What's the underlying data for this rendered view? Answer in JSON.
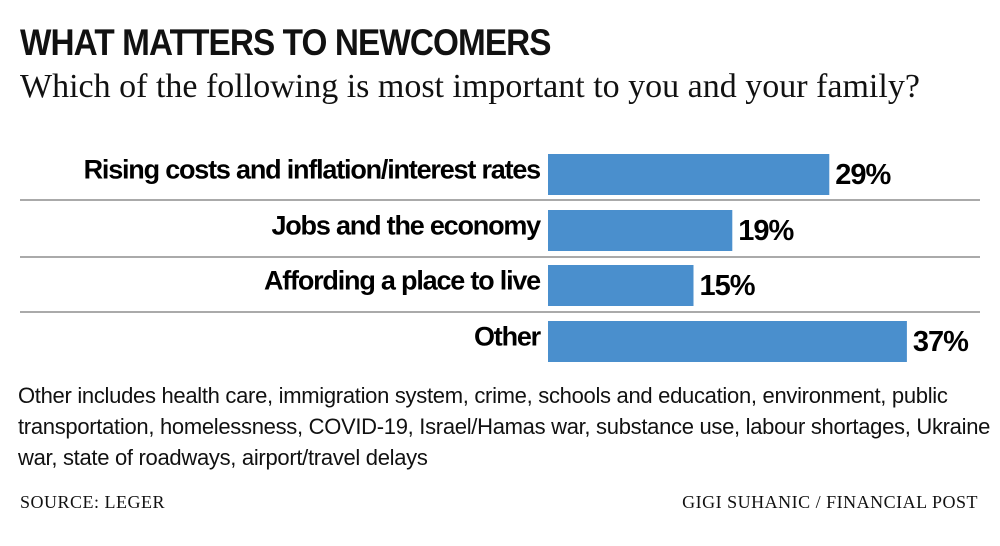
{
  "chart_data": {
    "type": "bar",
    "orientation": "horizontal",
    "title": "WHAT MATTERS TO NEWCOMERS",
    "subtitle": "Which of the following is most important to you and your family?",
    "categories": [
      "Rising costs and inflation/interest rates",
      "Jobs and the economy",
      "Affording a place to live",
      "Other"
    ],
    "values": [
      29,
      19,
      15,
      37
    ],
    "value_labels": [
      "29%",
      "19%",
      "15%",
      "37%"
    ],
    "color": "#4a8fcd",
    "note": "Other includes health care, immigration system, crime, schools and education, environment, public transportation, homelessness, COVID-19, Israel/Hamas war, substance use, labour shortages, Ukraine war, state of roadways, airport/travel delays",
    "source": "SOURCE: LEGER",
    "credit": "GIGI SUHANIC / FINANCIAL POST"
  }
}
